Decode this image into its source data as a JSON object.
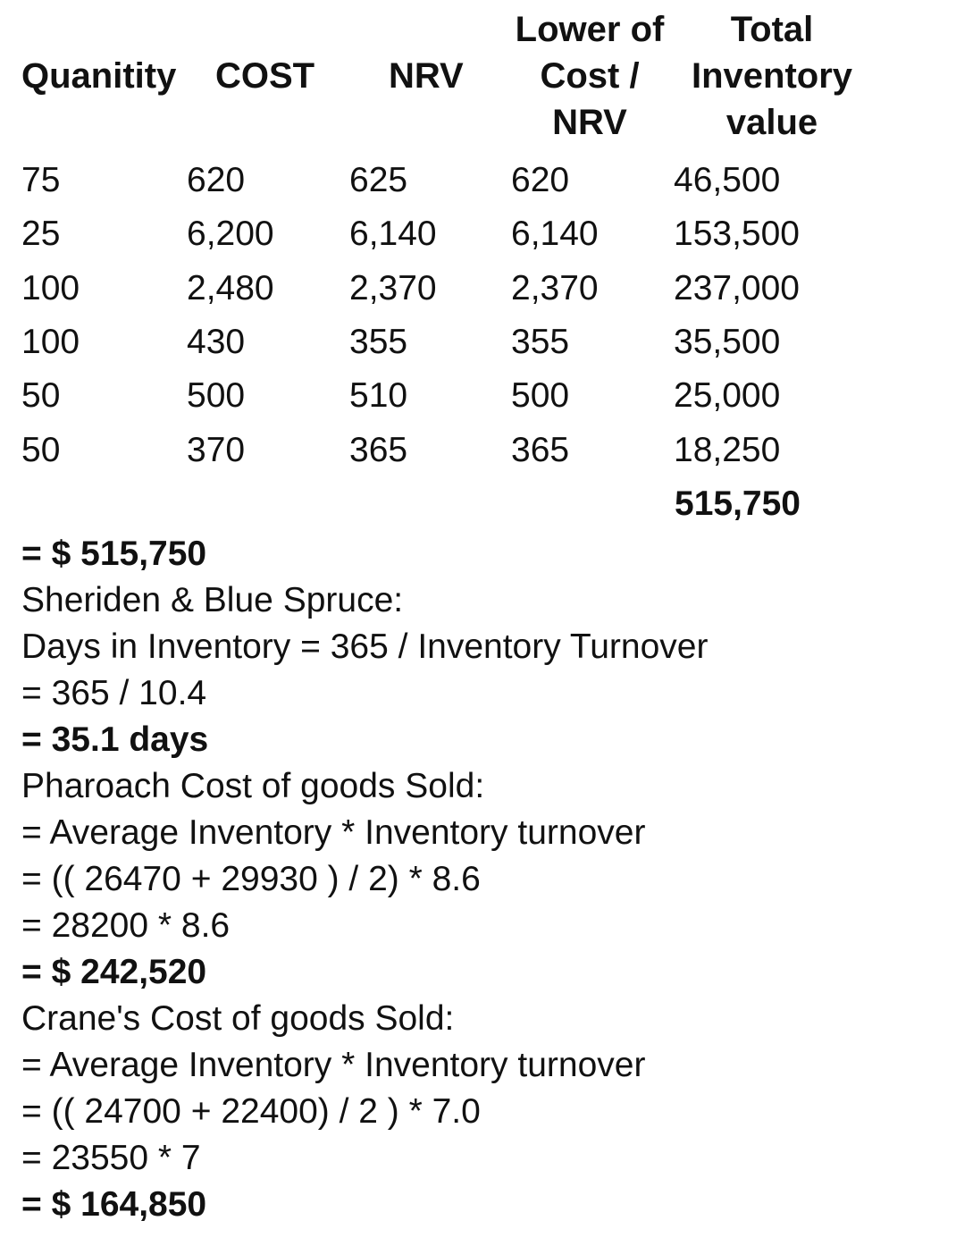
{
  "table": {
    "headers": [
      "Quanitity",
      "COST",
      "NRV",
      "Lower of\nCost /\nNRV",
      "Total\nInventory\nvalue"
    ],
    "header_lines": {
      "lower": [
        "Lower of",
        "Cost /",
        "NRV"
      ],
      "total": [
        "Total",
        "Inventory",
        "value"
      ]
    },
    "rows": [
      [
        "75",
        "620",
        "625",
        "620",
        "46,500"
      ],
      [
        "25",
        "6,200",
        "6,140",
        "6,140",
        "153,500"
      ],
      [
        "100",
        "2,480",
        "2,370",
        "2,370",
        "237,000"
      ],
      [
        "100",
        "430",
        "355",
        "355",
        "35,500"
      ],
      [
        "50",
        "500",
        "510",
        "500",
        "25,000"
      ],
      [
        "50",
        "370",
        "365",
        "365",
        "18,250"
      ]
    ],
    "total": "515,750"
  },
  "lines": [
    {
      "text": "= $ 515,750",
      "bold": true
    },
    {
      "text": "Sheriden & Blue Spruce:",
      "bold": false
    },
    {
      "text": "Days in Inventory = 365 / Inventory Turnover",
      "bold": false
    },
    {
      "text": "= 365 / 10.4",
      "bold": false
    },
    {
      "text": "= 35.1 days",
      "bold": true
    },
    {
      "text": "Pharoach Cost of goods Sold:",
      "bold": false
    },
    {
      "text": "= Average Inventory * Inventory turnover",
      "bold": false
    },
    {
      "text": "= (( 26470 + 29930 ) / 2) * 8.6",
      "bold": false
    },
    {
      "text": "= 28200 * 8.6",
      "bold": false
    },
    {
      "text": "= $ 242,520",
      "bold": true
    },
    {
      "text": "Crane's Cost of goods Sold:",
      "bold": false
    },
    {
      "text": "= Average Inventory * Inventory turnover",
      "bold": false
    },
    {
      "text": "= (( 24700 + 22400) / 2 ) * 7.0",
      "bold": false
    },
    {
      "text": "= 23550 * 7",
      "bold": false
    },
    {
      "text": "= $ 164,850",
      "bold": true
    }
  ]
}
